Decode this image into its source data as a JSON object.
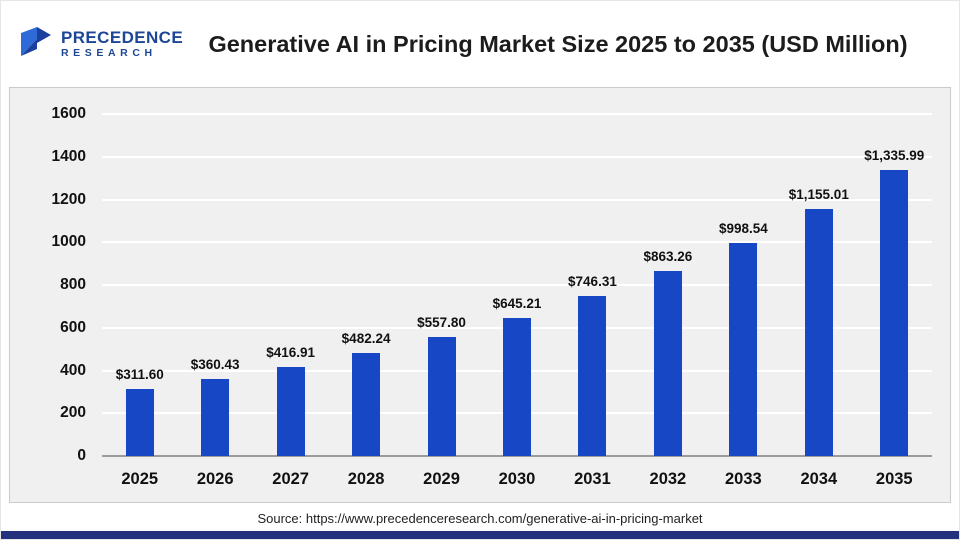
{
  "header": {
    "title": "Generative AI in Pricing Market Size 2025 to 2035 (USD Million)",
    "logo": {
      "line1": "PRECEDENCE",
      "line2": "RESEARCH"
    }
  },
  "footer": {
    "source": "Source: https://www.precedenceresearch.com/generative-ai-in-pricing-market"
  },
  "colors": {
    "bar": "#1747c4",
    "logo_blue": "#1d4696",
    "bottom_strip": "#24317c",
    "plot_background": "#f0f0f1",
    "gridline": "#ffffff"
  },
  "chart_data": {
    "type": "bar",
    "title": "Generative AI in Pricing Market Size 2025 to 2035 (USD Million)",
    "categories": [
      "2025",
      "2026",
      "2027",
      "2028",
      "2029",
      "2030",
      "2031",
      "2032",
      "2033",
      "2034",
      "2035"
    ],
    "values": [
      311.6,
      360.43,
      416.91,
      482.24,
      557.8,
      645.21,
      746.31,
      863.26,
      998.54,
      1155.01,
      1335.99
    ],
    "labels": [
      "$311.60",
      "$360.43",
      "$416.91",
      "$482.24",
      "$557.80",
      "$645.21",
      "$746.31",
      "$863.26",
      "$998.54",
      "$1,155.01",
      "$1,335.99"
    ],
    "xlabel": "",
    "ylabel": "",
    "ylim": [
      0,
      1600
    ],
    "yticks": [
      0,
      200,
      400,
      600,
      800,
      1000,
      1200,
      1400,
      1600
    ],
    "grid": true,
    "legend": "none"
  }
}
